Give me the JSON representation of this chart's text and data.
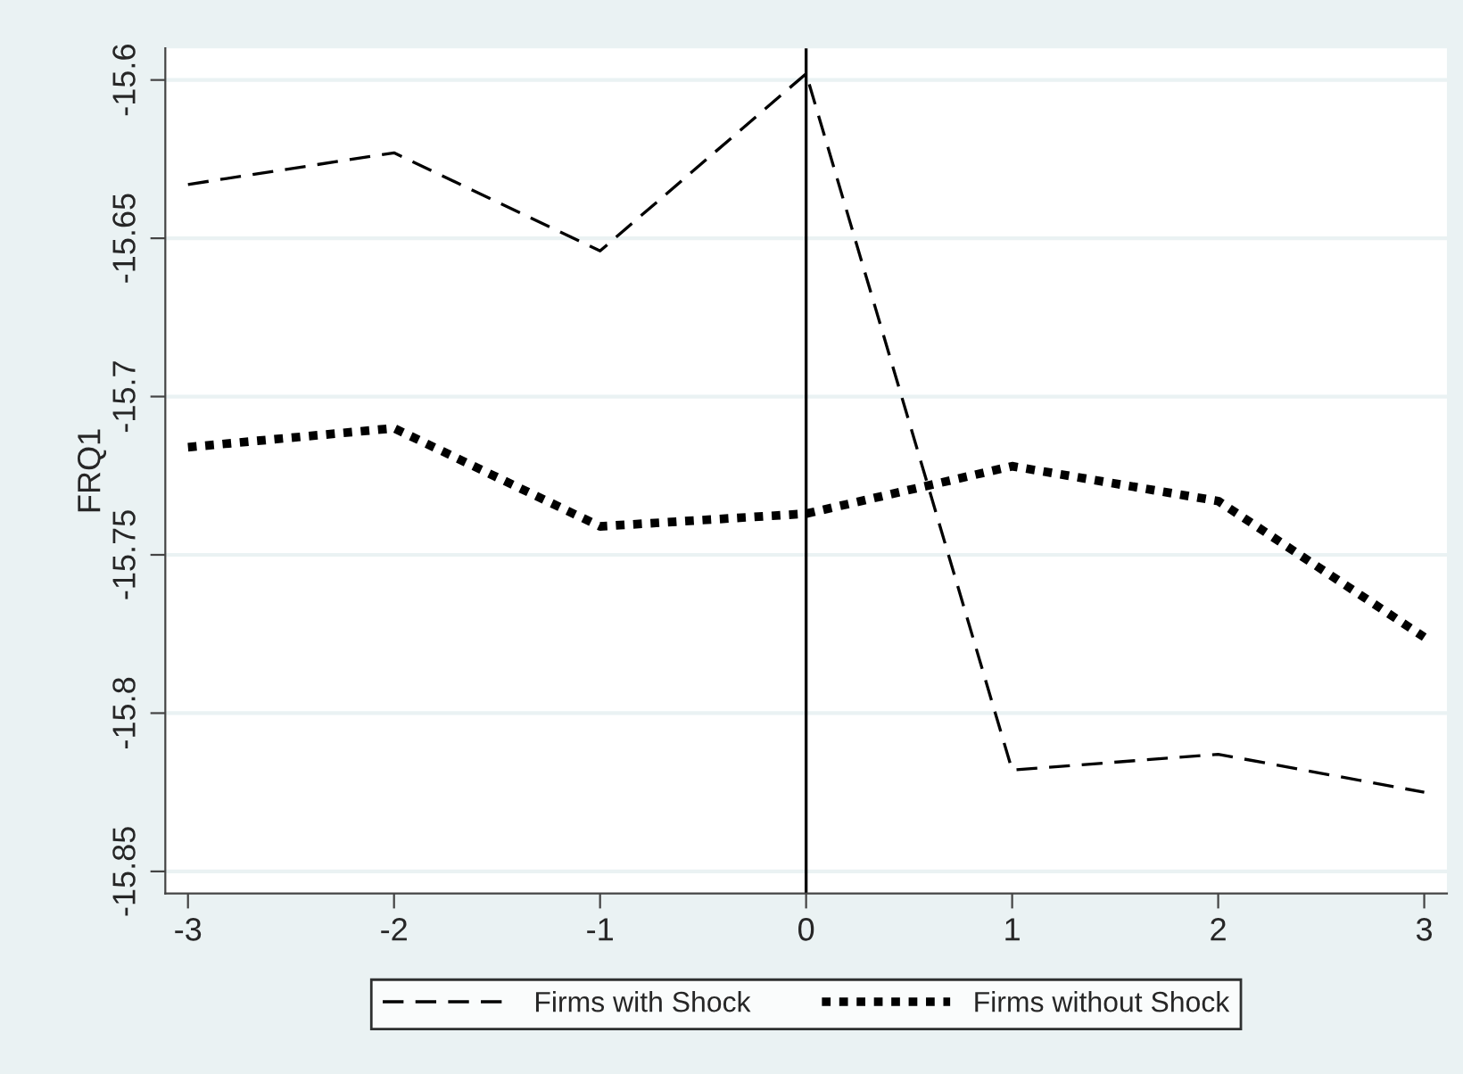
{
  "chart_data": {
    "type": "line",
    "ylabel": "FRQ1",
    "x": [
      -3,
      -2,
      -1,
      0,
      1,
      2,
      3
    ],
    "series": [
      {
        "name": "Firms with Shock",
        "color": "#000000",
        "line_style": "dashed",
        "values": [
          -15.633,
          -15.623,
          -15.654,
          -15.598,
          -15.818,
          -15.813,
          -15.825
        ]
      },
      {
        "name": "Firms without Shock",
        "color": "#000000",
        "line_style": "dotted",
        "values": [
          -15.716,
          -15.71,
          -15.741,
          -15.737,
          -15.722,
          -15.733,
          -15.776
        ]
      }
    ],
    "xlim": [
      -3.11,
      3.11
    ],
    "xticks": [
      -3,
      -2,
      -1,
      0,
      1,
      2,
      3
    ],
    "ylim": [
      -15.857,
      -15.59
    ],
    "yticks": [
      -15.85,
      -15.8,
      -15.75,
      -15.7,
      -15.65,
      -15.6
    ],
    "ref_lines": [
      {
        "axis": "x",
        "value": 0,
        "color": "#000000",
        "line_style": "solid"
      }
    ],
    "grid": "y",
    "legend": "bottom"
  }
}
